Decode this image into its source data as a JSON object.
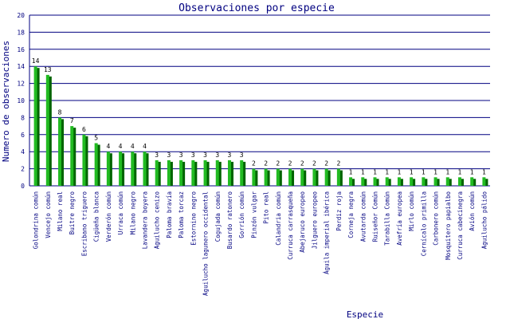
{
  "chart_data": {
    "type": "bar",
    "title": "Observaciones por especie",
    "xlabel": "Especie",
    "ylabel": "Numero de observaciones",
    "ylim": [
      0,
      20
    ],
    "ytick_step": 2,
    "grid": true,
    "legend": "none",
    "colors": {
      "bar": "#22bb22",
      "bar_shadow": "#006400",
      "title": "#000080",
      "axis_label": "#000080",
      "tick_label": "#000080",
      "grid": "#000080",
      "axis": "#000080",
      "value_label": "#000000"
    },
    "categories": [
      "Golondrina común",
      "Vencejo común",
      "Milano real",
      "Buitre negro",
      "Escribano triguero",
      "Cigüeña blanca",
      "Verderón común",
      "Urraca común",
      "Milano negro",
      "Lavandera boyera",
      "Aguilucho cenizo",
      "Paloma bravía",
      "Paloma torcaz",
      "Estornino negro",
      "Aguilucho lagunero occidental",
      "Cogujada común",
      "Busardo ratonero",
      "Gorrión común",
      "Pinzón vulgar",
      "Pito real",
      "Calandria común",
      "Curruca carrasqueña",
      "Abejaruco europeo",
      "Jilguero europeo",
      "Águila imperial ibérica",
      "Perdiz roja",
      "Corneja negra",
      "Avutarda común",
      "Ruiseñor Común",
      "Tarabilla Común",
      "Avefría europea",
      "Mirlo común",
      "Cernícalo primilla",
      "Carbonero común",
      "Mosquitero papialbo",
      "Curruca cabecinegra",
      "Avión común",
      "Aguilucho pálido"
    ],
    "values": [
      14,
      13,
      8,
      7,
      6,
      5,
      4,
      4,
      4,
      4,
      3,
      3,
      3,
      3,
      3,
      3,
      3,
      3,
      2,
      2,
      2,
      2,
      2,
      2,
      2,
      2,
      1,
      1,
      1,
      1,
      1,
      1,
      1,
      1,
      1,
      1,
      1,
      1
    ]
  }
}
